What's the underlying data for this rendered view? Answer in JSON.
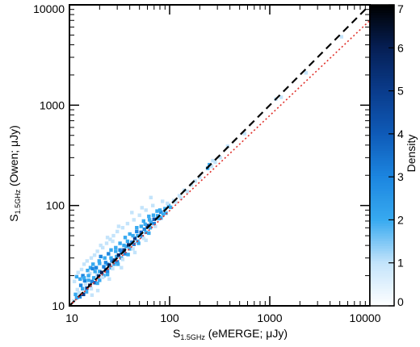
{
  "chart_data": {
    "type": "heatmap",
    "xscale": "log",
    "yscale": "log",
    "xlim": [
      10,
      10000
    ],
    "ylim": [
      10,
      10000
    ],
    "xlabel": {
      "main": "S",
      "sub": "1.5GHz",
      "rest": " (eMERGE; μJy)"
    },
    "ylabel": {
      "main": "S",
      "sub": "1.5GHz",
      "rest": " (Owen; μJy)"
    },
    "x_ticks": [
      {
        "value": 10,
        "label": "10"
      },
      {
        "value": 100,
        "label": "100"
      },
      {
        "value": 1000,
        "label": "1000"
      },
      {
        "value": 10000,
        "label": "10000"
      }
    ],
    "y_ticks": [
      {
        "value": 10,
        "label": "10"
      },
      {
        "value": 100,
        "label": "100"
      },
      {
        "value": 1000,
        "label": "1000"
      },
      {
        "value": 10000,
        "label": "10000"
      }
    ],
    "lines": [
      {
        "name": "one-to-one",
        "style": "dashed",
        "color": "#000000",
        "x": [
          10,
          10000
        ],
        "y": [
          10,
          10000
        ]
      },
      {
        "name": "fit",
        "style": "dotted",
        "color": "#e0302a",
        "x": [
          10,
          10000
        ],
        "y": [
          10,
          7000
        ]
      }
    ],
    "colorbar": {
      "label": "Density",
      "min": 0,
      "max": 7,
      "ticks": [
        0,
        1,
        2,
        3,
        4,
        5,
        6,
        7
      ],
      "colors": [
        "#ffffff",
        "#c4e4fb",
        "#38aaf0",
        "#1c86e0",
        "#0f5bb8",
        "#0a3c8c",
        "#061f55",
        "#000000"
      ]
    },
    "density_points": [
      [
        11.0,
        11.2,
        1
      ],
      [
        11.8,
        12.0,
        2
      ],
      [
        12.5,
        13.5,
        1
      ],
      [
        12.7,
        12.3,
        3
      ],
      [
        13.5,
        14.8,
        2
      ],
      [
        13.8,
        13.0,
        5
      ],
      [
        14.5,
        16.5,
        1
      ],
      [
        14.9,
        15.0,
        4
      ],
      [
        15.5,
        18.0,
        2
      ],
      [
        16.0,
        16.0,
        6
      ],
      [
        16.8,
        17.5,
        3
      ],
      [
        17.5,
        19.0,
        2
      ],
      [
        18.0,
        17.0,
        4
      ],
      [
        18.8,
        20.5,
        1
      ],
      [
        19.5,
        19.8,
        5
      ],
      [
        20.0,
        22.0,
        2
      ],
      [
        21.0,
        21.5,
        6
      ],
      [
        22.0,
        24.5,
        3
      ],
      [
        23.0,
        23.0,
        4
      ],
      [
        24.0,
        26.0,
        2
      ],
      [
        25.0,
        25.5,
        6
      ],
      [
        26.5,
        28.0,
        3
      ],
      [
        28.0,
        28.5,
        5
      ],
      [
        29.5,
        31.0,
        2
      ],
      [
        31.0,
        32.0,
        6
      ],
      [
        33.0,
        34.5,
        3
      ],
      [
        35.0,
        36.0,
        5
      ],
      [
        37.0,
        39.0,
        2
      ],
      [
        39.0,
        40.5,
        6
      ],
      [
        42.0,
        43.0,
        3
      ],
      [
        45.0,
        47.0,
        5
      ],
      [
        48.0,
        50.0,
        2
      ],
      [
        52.0,
        54.0,
        4
      ],
      [
        56.0,
        58.0,
        3
      ],
      [
        60.0,
        63.0,
        5
      ],
      [
        65.0,
        68.0,
        2
      ],
      [
        70.0,
        73.0,
        4
      ],
      [
        76.0,
        79.0,
        2
      ],
      [
        82.0,
        86.0,
        3
      ],
      [
        90.0,
        93.0,
        2
      ],
      [
        98.0,
        100.0,
        2
      ],
      [
        110.0,
        112.0,
        1
      ],
      [
        125.0,
        125.0,
        1
      ],
      [
        140.0,
        142.0,
        1
      ],
      [
        11.2,
        17.5,
        1
      ],
      [
        11.8,
        19.5,
        2
      ],
      [
        12.2,
        21.5,
        1
      ],
      [
        12.8,
        18.5,
        2
      ],
      [
        13.2,
        23.0,
        1
      ],
      [
        13.6,
        20.0,
        3
      ],
      [
        14.0,
        26.0,
        1
      ],
      [
        14.2,
        17.8,
        3
      ],
      [
        15.0,
        28.0,
        1
      ],
      [
        15.2,
        22.5,
        2
      ],
      [
        16.2,
        24.0,
        2
      ],
      [
        16.5,
        30.0,
        1
      ],
      [
        17.2,
        26.0,
        2
      ],
      [
        17.8,
        32.0,
        1
      ],
      [
        18.5,
        24.0,
        3
      ],
      [
        19.0,
        35.0,
        1
      ],
      [
        19.8,
        28.0,
        2
      ],
      [
        20.5,
        31.0,
        3
      ],
      [
        21.5,
        38.0,
        1
      ],
      [
        22.5,
        30.0,
        2
      ],
      [
        23.5,
        42.0,
        1
      ],
      [
        24.5,
        33.0,
        3
      ],
      [
        25.5,
        46.0,
        1
      ],
      [
        26.0,
        36.0,
        2
      ],
      [
        27.5,
        50.0,
        1
      ],
      [
        29.0,
        38.0,
        2
      ],
      [
        30.0,
        55.0,
        1
      ],
      [
        32.0,
        42.0,
        2
      ],
      [
        34.0,
        60.0,
        1
      ],
      [
        36.0,
        48.0,
        2
      ],
      [
        38.0,
        66.0,
        1
      ],
      [
        40.0,
        52.0,
        2
      ],
      [
        44.0,
        72.0,
        1
      ],
      [
        47.0,
        60.0,
        2
      ],
      [
        50.0,
        80.0,
        1
      ],
      [
        55.0,
        70.0,
        2
      ],
      [
        58.0,
        90.0,
        1
      ],
      [
        62.0,
        78.0,
        2
      ],
      [
        68.0,
        100.0,
        1
      ],
      [
        75.0,
        88.0,
        2
      ],
      [
        85.0,
        110.0,
        1
      ],
      [
        95.0,
        105.0,
        1
      ],
      [
        12.0,
        14.5,
        1
      ],
      [
        14.0,
        19.0,
        2
      ],
      [
        16.0,
        21.0,
        1
      ],
      [
        18.0,
        22.0,
        2
      ],
      [
        20.0,
        18.0,
        2
      ],
      [
        22.0,
        20.0,
        2
      ],
      [
        24.0,
        22.0,
        3
      ],
      [
        26.0,
        24.0,
        2
      ],
      [
        28.0,
        26.0,
        2
      ],
      [
        30.0,
        27.5,
        3
      ],
      [
        33.0,
        30.0,
        2
      ],
      [
        36.0,
        33.0,
        3
      ],
      [
        40.0,
        37.0,
        2
      ],
      [
        44.0,
        41.0,
        3
      ],
      [
        48.0,
        44.0,
        2
      ],
      [
        53.0,
        49.0,
        3
      ],
      [
        58.0,
        54.0,
        2
      ],
      [
        64.0,
        60.0,
        2
      ],
      [
        70.0,
        66.0,
        3
      ],
      [
        78.0,
        74.0,
        2
      ],
      [
        86.0,
        82.0,
        2
      ],
      [
        14.8,
        13.8,
        2
      ],
      [
        16.5,
        14.8,
        1
      ],
      [
        19.0,
        16.8,
        2
      ],
      [
        21.5,
        19.2,
        1
      ],
      [
        24.0,
        20.5,
        2
      ],
      [
        27.0,
        23.5,
        1
      ],
      [
        30.5,
        26.0,
        2
      ],
      [
        34.0,
        29.0,
        1
      ],
      [
        38.5,
        32.5,
        2
      ],
      [
        43.0,
        37.0,
        1
      ],
      [
        49.0,
        42.0,
        2
      ],
      [
        55.0,
        47.0,
        1
      ],
      [
        62.0,
        53.0,
        2
      ],
      [
        11.5,
        13.0,
        2
      ],
      [
        13.0,
        16.0,
        3
      ],
      [
        15.5,
        20.0,
        2
      ],
      [
        17.0,
        23.5,
        3
      ],
      [
        20.0,
        26.5,
        2
      ],
      [
        23.0,
        27.0,
        3
      ],
      [
        26.0,
        30.0,
        2
      ],
      [
        29.0,
        35.0,
        2
      ],
      [
        32.0,
        36.0,
        3
      ],
      [
        35.0,
        40.0,
        2
      ],
      [
        38.0,
        44.0,
        2
      ],
      [
        43.0,
        50.0,
        2
      ],
      [
        47.0,
        55.0,
        3
      ],
      [
        52.0,
        62.0,
        2
      ],
      [
        57.0,
        65.0,
        2
      ],
      [
        63.0,
        72.0,
        2
      ],
      [
        69.0,
        80.0,
        2
      ],
      [
        80.0,
        90.0,
        2
      ],
      [
        20.5,
        40.0,
        1
      ],
      [
        24.0,
        48.0,
        1
      ],
      [
        27.0,
        44.0,
        1
      ],
      [
        31.0,
        62.0,
        1
      ],
      [
        42.0,
        85.0,
        1
      ],
      [
        53.0,
        95.0,
        1
      ],
      [
        65.0,
        120.0,
        1
      ],
      [
        72.0,
        62.0,
        1
      ],
      [
        82.0,
        75.0,
        2
      ],
      [
        92.0,
        84.0,
        2
      ],
      [
        102.0,
        96.0,
        2
      ],
      [
        115.0,
        108.0,
        1
      ],
      [
        130.0,
        118.0,
        1
      ],
      [
        150.0,
        138.0,
        1
      ],
      [
        165.0,
        160.0,
        1
      ],
      [
        180.0,
        175.0,
        1
      ],
      [
        200.0,
        190.0,
        1
      ],
      [
        240.0,
        235.0,
        2
      ],
      [
        250.0,
        255.0,
        2
      ],
      [
        262.0,
        245.0,
        1
      ],
      [
        270.0,
        280.0,
        1
      ],
      [
        285.0,
        270.0,
        1
      ],
      [
        320.0,
        300.0,
        1
      ],
      [
        380.0,
        390.0,
        1
      ],
      [
        560.0,
        520.0,
        1
      ],
      [
        1150.0,
        1150.0,
        1
      ],
      [
        1300.0,
        1200.0,
        1
      ],
      [
        2300.0,
        2100.0,
        1
      ],
      [
        5200.0,
        4800.0,
        1
      ],
      [
        16.8,
        12.8,
        1
      ],
      [
        19.2,
        14.2,
        1
      ],
      [
        25.0,
        18.5,
        1
      ],
      [
        33.0,
        24.0,
        1
      ],
      [
        45.0,
        34.0,
        1
      ],
      [
        58.0,
        45.0,
        1
      ]
    ]
  }
}
